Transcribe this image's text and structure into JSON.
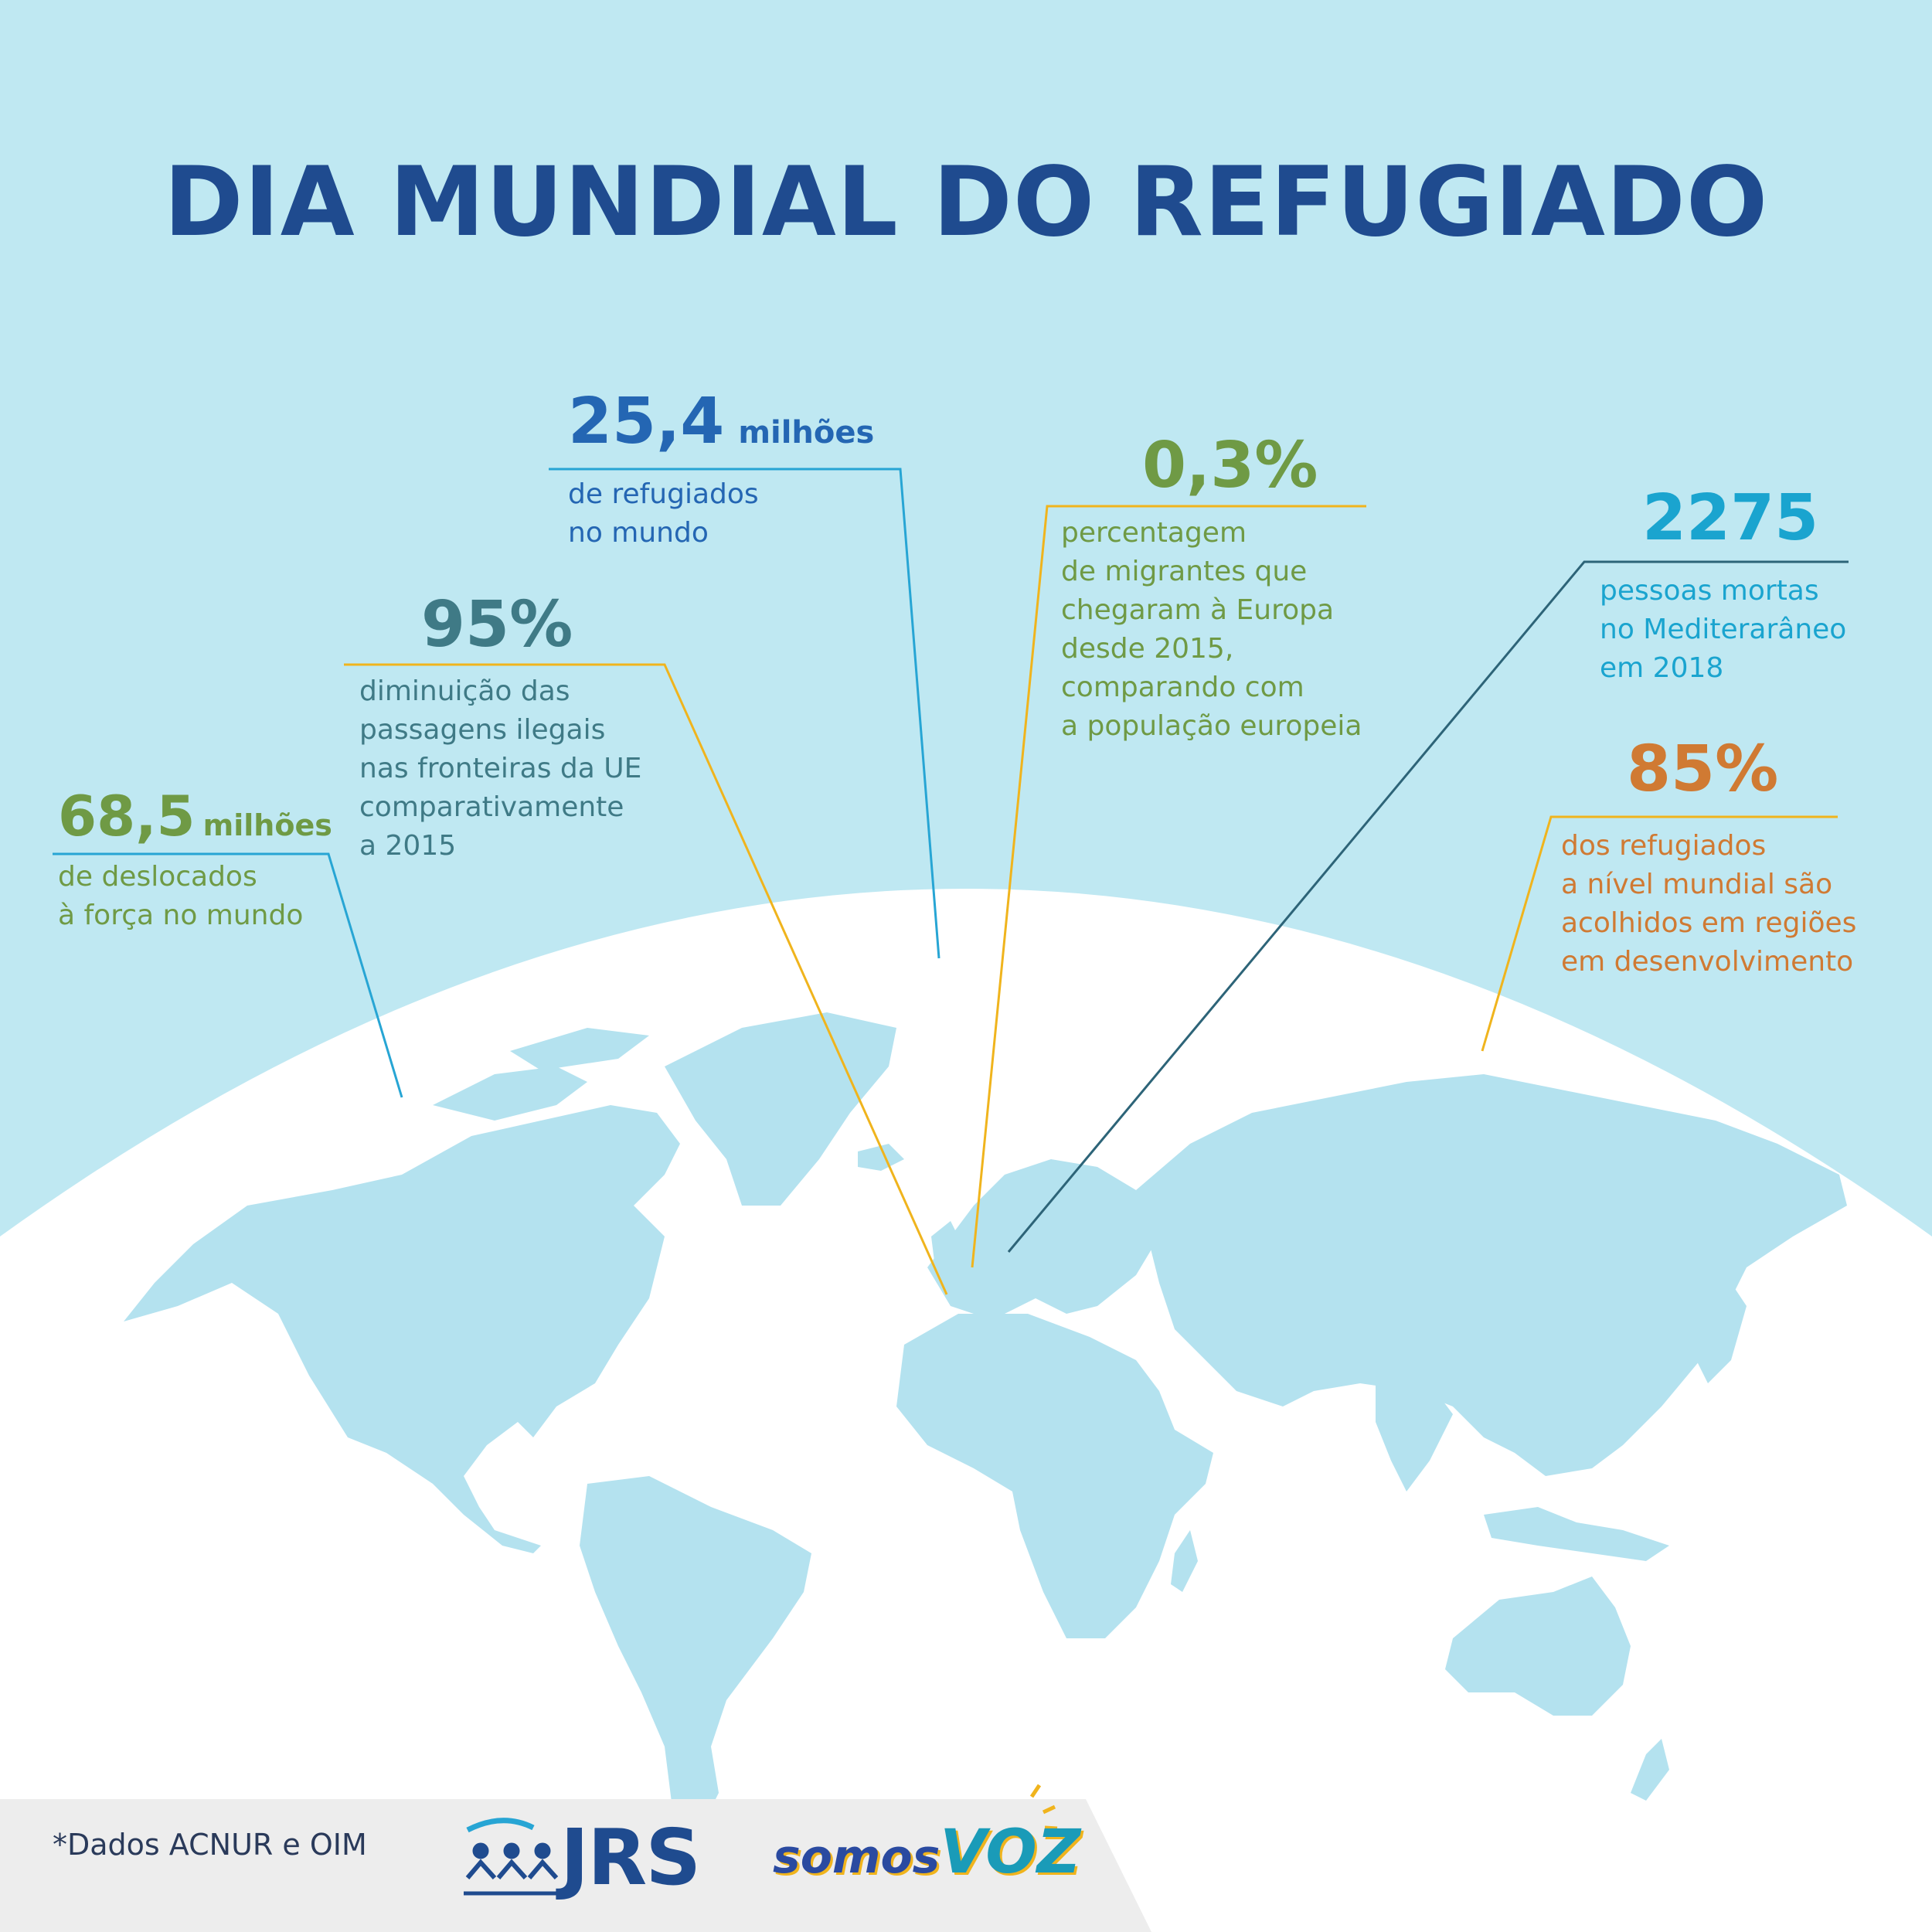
{
  "title": "DIA MUNDIAL DO REFUGIADO",
  "colors": {
    "background": "#bfe8f2",
    "title": "#1f4b8f",
    "continent": "#b4e2ef",
    "globe": "#ffffff",
    "blue_dark": "#2466b3",
    "teal": "#3f7a86",
    "green": "#6f9a45",
    "cyan": "#1aa4cf",
    "orange": "#d07a33",
    "line_yellow": "#f0b41d",
    "line_blue": "#27a5d4",
    "line_dark": "#2d6478",
    "footer": "#ededed"
  },
  "stats": {
    "refugiados": {
      "value": "25,4",
      "unit": "milhões",
      "lines": [
        "de refugiados",
        "no mundo"
      ]
    },
    "migrantes": {
      "value": "0,3%",
      "lines": [
        "percentagem",
        "de migrantes que",
        "chegaram à Europa",
        "desde 2015,",
        "comparando com",
        "a população europeia"
      ]
    },
    "mortes": {
      "value": "2275",
      "lines": [
        "pessoas mortas",
        "no Mediterarâneo",
        "em 2018"
      ]
    },
    "diminuicao": {
      "value": "95%",
      "lines": [
        "diminuição das",
        "passagens ilegais",
        "nas fronteiras da UE",
        "comparativamente",
        "a 2015"
      ]
    },
    "deslocados": {
      "value": "68,5",
      "unit": "milhões",
      "lines": [
        "de deslocados",
        "à força no mundo"
      ]
    },
    "acolhidos": {
      "value": "85%",
      "lines": [
        "dos refugiados",
        "a nível mundial são",
        "acolhidos em regiões",
        "em desenvolvimento"
      ]
    }
  },
  "footer": {
    "source": "*Dados ACNUR e OIM",
    "logo_jrs": "JRS",
    "logo_somos": "somos",
    "logo_voz": "VOZ"
  },
  "icons": {
    "map": "world-map-icon",
    "jrs": "jrs-people-icon"
  }
}
